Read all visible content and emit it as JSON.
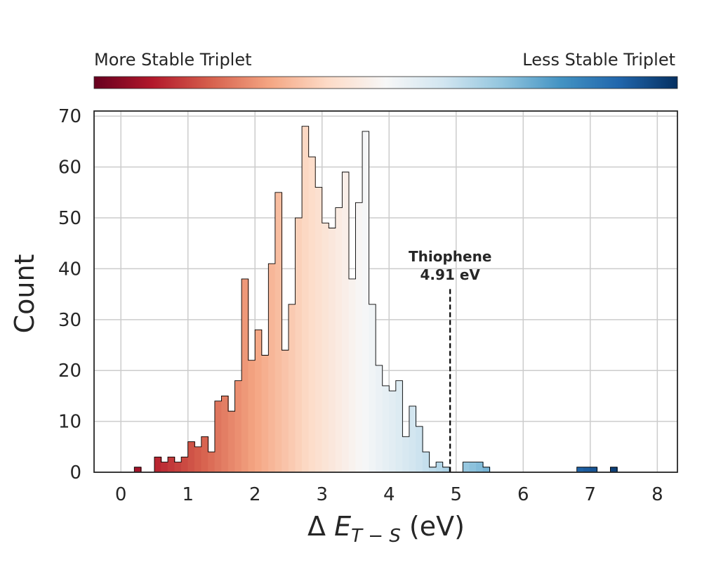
{
  "chart_data": {
    "type": "bar",
    "chart_style": "histogram",
    "title": "",
    "xlabel": "Δ E_{T−S} (eV)",
    "xlabel_parts": {
      "prefix": "Δ ",
      "symbol": "E",
      "subscript": "T − S",
      "suffix": " (eV)"
    },
    "ylabel": "Count",
    "xlim": [
      -0.4,
      8.3
    ],
    "ylim": [
      0,
      71
    ],
    "xticks": [
      0,
      1,
      2,
      3,
      4,
      5,
      6,
      7,
      8
    ],
    "yticks": [
      0,
      10,
      20,
      30,
      40,
      50,
      60,
      70
    ],
    "grid": true,
    "colormap": "RdBu",
    "colorbar": {
      "left_label": "More Stable Triplet",
      "right_label": "Less Stable Triplet",
      "stops": [
        "#67001f",
        "#b2182b",
        "#d6604d",
        "#f4a582",
        "#fddbc7",
        "#f7f7f7",
        "#d1e5f0",
        "#92c5de",
        "#4393c3",
        "#2166ac",
        "#053061"
      ]
    },
    "bin_width": 0.1,
    "x_bin_start": 0,
    "counts": [
      0,
      0,
      1,
      0,
      0,
      3,
      2,
      3,
      2,
      3,
      6,
      5,
      7,
      4,
      14,
      15,
      12,
      18,
      38,
      22,
      28,
      23,
      41,
      55,
      24,
      33,
      50,
      68,
      62,
      56,
      49,
      48,
      52,
      59,
      38,
      53,
      67,
      33,
      21,
      17,
      16,
      18,
      7,
      13,
      9,
      4,
      1,
      2,
      1,
      0,
      0,
      2,
      2,
      2,
      1,
      0,
      0,
      0,
      0,
      0,
      0,
      0,
      0,
      0,
      0,
      0,
      0,
      0,
      1,
      1,
      1,
      0,
      0,
      1,
      0,
      0,
      0,
      0,
      0,
      0,
      0
    ],
    "annotation": {
      "label": "Thiophene",
      "value_label": "4.91 eV",
      "x": 4.91,
      "line_top_y": 36
    }
  }
}
